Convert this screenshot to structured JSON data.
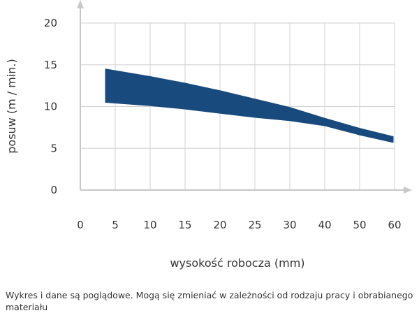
{
  "chart_data": {
    "type": "area",
    "xlabel": "wysokość robocza (mm)",
    "ylabel": "posuw (m / min.)",
    "xlim": [
      0,
      60
    ],
    "ylim": [
      0,
      20
    ],
    "x_ticks": [
      0,
      5,
      10,
      15,
      20,
      25,
      30,
      40,
      50,
      60
    ],
    "y_ticks": [
      0,
      5,
      10,
      15,
      20
    ],
    "grid": true,
    "fill_color": "#194a7d",
    "series": [
      {
        "x": [
          3.6,
          10,
          15,
          20,
          25,
          30,
          40,
          50,
          59.6
        ],
        "upper": [
          14.5,
          13.6,
          12.8,
          11.9,
          10.9,
          9.9,
          8.6,
          7.4,
          6.4
        ],
        "lower": [
          10.5,
          10.1,
          9.7,
          9.2,
          8.7,
          8.3,
          7.7,
          6.6,
          5.7
        ]
      }
    ]
  },
  "note": "Wykres i dane są poglądowe. Mogą się zmieniać w zależności od rodzaju pracy i obrabianego materiału"
}
